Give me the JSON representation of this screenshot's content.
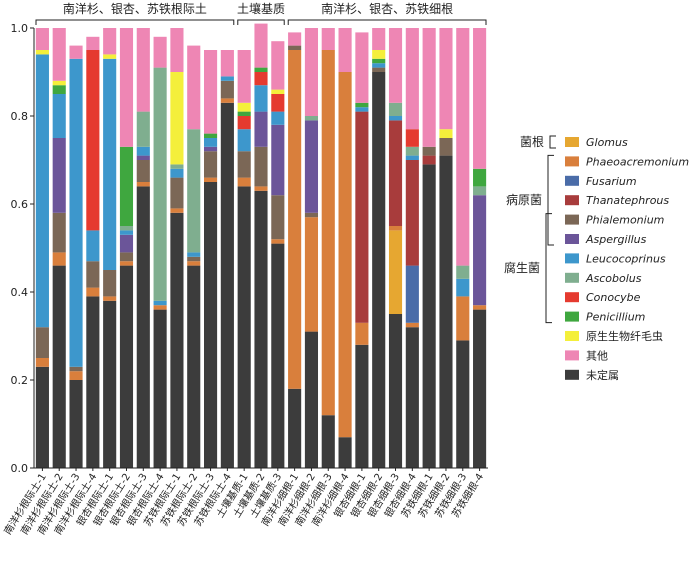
{
  "chart_data": {
    "type": "bar",
    "stacked": true,
    "ylim": [
      0,
      1.0
    ],
    "yticks": [
      "0.0",
      "0.2",
      "0.4",
      "0.6",
      "0.8",
      "1.0"
    ],
    "grid": false,
    "legend_position": "right",
    "categories": [
      "南洋杉根际土-1",
      "南洋杉根际土-2",
      "南洋杉根际土-3",
      "南洋杉根际土-4",
      "银杏根际土-1",
      "银杏根际土-2",
      "银杏根际土-3",
      "银杏根际土-4",
      "苏铁根际土-1",
      "苏铁根际土-2",
      "苏铁根际土-3",
      "苏铁根际土-4",
      "土壤基质-1",
      "土壤基质-2",
      "土壤基质-3",
      "南洋杉细根-1",
      "南洋杉细根-2",
      "南洋杉细根-3",
      "南洋杉细根-4",
      "银杏细根-1",
      "银杏细根-2",
      "银杏细根-3",
      "银杏细根-4",
      "苏铁细根-1",
      "苏铁细根-2",
      "苏铁细根-3",
      "苏铁细根-4"
    ],
    "groups": [
      {
        "label": "南洋杉、银杏、苏铁根际土",
        "start": 0,
        "end": 11
      },
      {
        "label": "土壤基质",
        "start": 12,
        "end": 14
      },
      {
        "label": "南洋杉、银杏、苏铁细根",
        "start": 15,
        "end": 26
      }
    ],
    "series": [
      {
        "name": "未定属",
        "color": "#3c3c3c",
        "values": [
          0.23,
          0.46,
          0.2,
          0.39,
          0.38,
          0.46,
          0.64,
          0.36,
          0.58,
          0.46,
          0.65,
          0.83,
          0.64,
          0.63,
          0.51,
          0.18,
          0.31,
          0.12,
          0.07,
          0.28,
          0.9,
          0.35,
          0.32,
          0.69,
          0.71,
          0.29,
          0.36
        ]
      },
      {
        "name": "Glomus",
        "color": "#e6a731",
        "values": [
          0,
          0,
          0,
          0,
          0,
          0,
          0,
          0,
          0,
          0,
          0,
          0,
          0,
          0,
          0,
          0,
          0,
          0,
          0,
          0,
          0,
          0.19,
          0,
          0,
          0,
          0,
          0
        ]
      },
      {
        "name": "Phaeoacremonium",
        "color": "#d97f3c",
        "values": [
          0.02,
          0.03,
          0.02,
          0.02,
          0.01,
          0.01,
          0.01,
          0.01,
          0.01,
          0.01,
          0.01,
          0.01,
          0.02,
          0.01,
          0.01,
          0.77,
          0.26,
          0.83,
          0.83,
          0.05,
          0,
          0.01,
          0.01,
          0,
          0,
          0.1,
          0.01
        ]
      },
      {
        "name": "Fusarium",
        "color": "#4a6ca8",
        "values": [
          0,
          0,
          0,
          0,
          0,
          0,
          0,
          0,
          0,
          0,
          0,
          0,
          0,
          0,
          0,
          0,
          0,
          0,
          0,
          0,
          0,
          0,
          0.13,
          0,
          0,
          0,
          0
        ]
      },
      {
        "name": "Thanatephrous",
        "color": "#a83c3c",
        "values": [
          0,
          0,
          0,
          0,
          0,
          0,
          0,
          0,
          0,
          0,
          0,
          0,
          0,
          0,
          0,
          0,
          0,
          0,
          0,
          0.48,
          0,
          0.24,
          0.24,
          0.02,
          0,
          0,
          0
        ]
      },
      {
        "name": "Phialemonium",
        "color": "#7b6756",
        "values": [
          0.07,
          0.09,
          0.01,
          0.06,
          0.06,
          0.02,
          0.05,
          0,
          0.07,
          0.01,
          0.06,
          0.04,
          0.06,
          0.09,
          0.1,
          0.01,
          0.01,
          0,
          0,
          0,
          0.01,
          0,
          0,
          0.02,
          0.04,
          0,
          0
        ]
      },
      {
        "name": "Aspergillus",
        "color": "#6b5599",
        "values": [
          0,
          0.17,
          0,
          0,
          0,
          0.04,
          0.01,
          0,
          0,
          0,
          0.01,
          0,
          0,
          0.08,
          0.16,
          0,
          0.21,
          0,
          0,
          0,
          0,
          0,
          0,
          0,
          0,
          0,
          0.25
        ]
      },
      {
        "name": "Leucocoprinus",
        "color": "#3d97cc",
        "values": [
          0.62,
          0.1,
          0.7,
          0.07,
          0.48,
          0.01,
          0.02,
          0.01,
          0.02,
          0.01,
          0.02,
          0.01,
          0.05,
          0.06,
          0.03,
          0,
          0,
          0,
          0,
          0.01,
          0.01,
          0.01,
          0.01,
          0,
          0,
          0.04,
          0
        ]
      },
      {
        "name": "Ascobolus",
        "color": "#7fae8f",
        "values": [
          0,
          0,
          0,
          0,
          0,
          0.01,
          0.08,
          0.53,
          0.01,
          0.28,
          0,
          0,
          0,
          0,
          0,
          0,
          0.01,
          0,
          0,
          0,
          0,
          0.03,
          0.02,
          0,
          0,
          0.03,
          0.02
        ]
      },
      {
        "name": "Conocybe",
        "color": "#e53a2f",
        "values": [
          0,
          0,
          0,
          0.41,
          0,
          0,
          0,
          0,
          0,
          0,
          0,
          0,
          0.03,
          0.03,
          0.04,
          0,
          0,
          0,
          0,
          0,
          0,
          0,
          0.04,
          0,
          0,
          0,
          0
        ]
      },
      {
        "name": "Penicillium",
        "color": "#3fa73f",
        "values": [
          0,
          0.02,
          0,
          0,
          0,
          0.18,
          0,
          0,
          0,
          0,
          0.01,
          0,
          0.01,
          0.01,
          0,
          0,
          0,
          0,
          0,
          0.01,
          0.01,
          0,
          0,
          0,
          0,
          0,
          0.04
        ]
      },
      {
        "name": "原生生物纤毛虫",
        "color": "#f4ef3b",
        "values": [
          0.01,
          0.01,
          0,
          0,
          0.01,
          0,
          0,
          0,
          0.21,
          0,
          0,
          0,
          0.02,
          0,
          0.01,
          0,
          0,
          0,
          0,
          0,
          0.02,
          0,
          0,
          0,
          0.02,
          0,
          0
        ]
      },
      {
        "name": "其他",
        "color": "#ee86b4",
        "values": [
          0.05,
          0.12,
          0.03,
          0.03,
          0.06,
          0.27,
          0.19,
          0.07,
          0.1,
          0.19,
          0.19,
          0.06,
          0.12,
          0.1,
          0.11,
          0.03,
          0.2,
          0.05,
          0.1,
          0.16,
          0.05,
          0.17,
          0.23,
          0.27,
          0.23,
          0.54,
          0.32
        ]
      }
    ],
    "legend": [
      {
        "name": "Glomus",
        "color": "#e6a731",
        "italic": true
      },
      {
        "name": "Phaeoacremonium",
        "color": "#d97f3c",
        "italic": true
      },
      {
        "name": "Fusarium",
        "color": "#4a6ca8",
        "italic": true
      },
      {
        "name": "Thanatephrous",
        "color": "#a83c3c",
        "italic": true
      },
      {
        "name": "Phialemonium",
        "color": "#7b6756",
        "italic": true
      },
      {
        "name": "Aspergillus",
        "color": "#6b5599",
        "italic": true
      },
      {
        "name": "Leucocoprinus",
        "color": "#3d97cc",
        "italic": true
      },
      {
        "name": "Ascobolus",
        "color": "#7fae8f",
        "italic": true
      },
      {
        "name": "Conocybe",
        "color": "#e53a2f",
        "italic": true
      },
      {
        "name": "Penicillium",
        "color": "#3fa73f",
        "italic": true
      },
      {
        "name": "原生生物纤毛虫",
        "color": "#f4ef3b",
        "italic": false
      },
      {
        "name": "其他",
        "color": "#ee86b4",
        "italic": false
      },
      {
        "name": "未定属",
        "color": "#3c3c3c",
        "italic": false
      }
    ],
    "legend_groups": [
      {
        "label": "菌根",
        "from": 0,
        "to": 0
      },
      {
        "label": "病原菌",
        "from": 1,
        "to": 5
      },
      {
        "label": "腐生菌",
        "from": 4,
        "to": 9
      }
    ]
  }
}
